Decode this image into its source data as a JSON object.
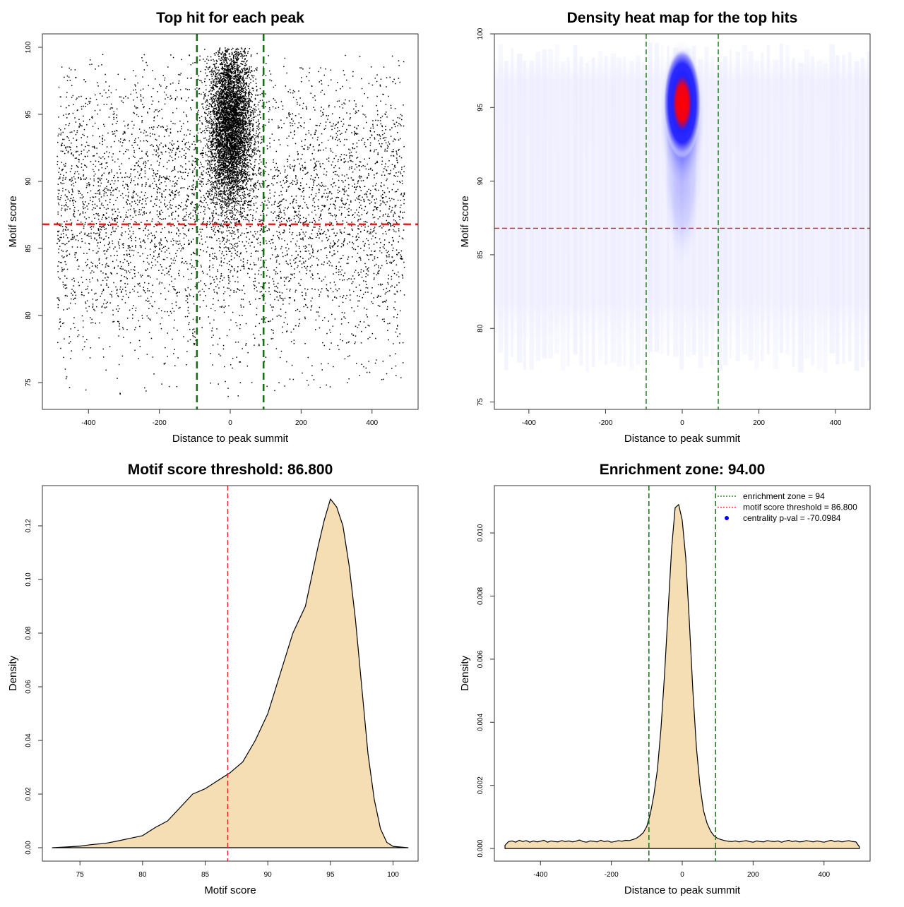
{
  "chart_data": [
    {
      "type": "scatter",
      "title": "Top hit for each peak",
      "xlabel": "Distance to peak summit",
      "ylabel": "Motif score",
      "xlim": [
        -530,
        530
      ],
      "ylim": [
        73,
        101
      ],
      "xticks": [
        -400,
        -200,
        0,
        200,
        400
      ],
      "yticks": [
        75,
        80,
        85,
        90,
        95,
        100
      ],
      "threshold": 86.8,
      "enrichment_zone": [
        -94,
        94
      ],
      "threshold_color": "#dd2222",
      "zone_color": "#157015",
      "point_color": "#000000"
    },
    {
      "type": "heatmap",
      "title": "Density heat map for the top hits",
      "xlabel": "Distance to peak summit",
      "ylabel": "Motif score",
      "xlim": [
        -490,
        490
      ],
      "ylim": [
        74.5,
        100
      ],
      "xticks": [
        -400,
        -200,
        0,
        200,
        400
      ],
      "yticks": [
        75,
        80,
        85,
        90,
        95,
        100
      ],
      "threshold": 86.8,
      "enrichment_zone": [
        -94,
        94
      ],
      "peak_center": {
        "x": 0,
        "y": 95.3
      },
      "colors": [
        "#ffffff",
        "#0000ff",
        "#ff0000"
      ]
    },
    {
      "type": "area",
      "title": "Motif score threshold: 86.800",
      "xlabel": "Motif score",
      "ylabel": "Density",
      "xlim": [
        72,
        102
      ],
      "ylim": [
        -0.005,
        0.135
      ],
      "xticks": [
        75,
        80,
        85,
        90,
        95,
        100
      ],
      "yticks": [
        0.0,
        0.02,
        0.04,
        0.06,
        0.08,
        0.1,
        0.12
      ],
      "ytick_labels": [
        "0.00",
        "0.02",
        "0.04",
        "0.06",
        "0.08",
        "0.10",
        "0.12"
      ],
      "threshold": 86.8,
      "fill_color": "#f5deb3",
      "x": [
        72.8,
        74,
        75,
        76,
        77,
        78,
        79,
        80,
        81,
        82,
        83,
        84,
        85,
        86,
        87,
        88,
        89,
        90,
        91,
        92,
        93,
        94,
        94.5,
        95,
        95.5,
        96,
        96.5,
        97,
        97.5,
        98,
        98.5,
        99,
        99.5,
        100,
        101.2
      ],
      "y": [
        0,
        0.0003,
        0.0006,
        0.0012,
        0.0016,
        0.0025,
        0.0035,
        0.0045,
        0.0075,
        0.01,
        0.015,
        0.02,
        0.022,
        0.025,
        0.028,
        0.032,
        0.04,
        0.05,
        0.065,
        0.08,
        0.09,
        0.112,
        0.122,
        0.13,
        0.127,
        0.12,
        0.105,
        0.085,
        0.06,
        0.035,
        0.018,
        0.007,
        0.002,
        0.0005,
        0
      ]
    },
    {
      "type": "area",
      "title": "Enrichment zone: 94.00",
      "xlabel": "Distance to peak summit",
      "ylabel": "Density",
      "xlim": [
        -530,
        530
      ],
      "ylim": [
        -0.0004,
        0.0115
      ],
      "xticks": [
        -400,
        -200,
        0,
        200,
        400
      ],
      "yticks": [
        0,
        0.002,
        0.004,
        0.006,
        0.008,
        0.01
      ],
      "ytick_labels": [
        "0.000",
        "0.002",
        "0.004",
        "0.006",
        "0.008",
        "0.010"
      ],
      "enrichment_zone": [
        -94,
        94
      ],
      "fill_color": "#f5deb3",
      "x": [
        -500,
        -490,
        -480,
        -470,
        -460,
        -450,
        -440,
        -430,
        -420,
        -410,
        -400,
        -390,
        -380,
        -370,
        -360,
        -350,
        -340,
        -330,
        -320,
        -310,
        -300,
        -290,
        -280,
        -270,
        -260,
        -250,
        -240,
        -230,
        -220,
        -210,
        -200,
        -190,
        -180,
        -170,
        -160,
        -150,
        -140,
        -130,
        -120,
        -110,
        -100,
        -90,
        -80,
        -70,
        -60,
        -50,
        -40,
        -30,
        -20,
        -10,
        0,
        10,
        20,
        30,
        40,
        50,
        60,
        70,
        80,
        90,
        100,
        110,
        120,
        130,
        140,
        150,
        160,
        170,
        180,
        190,
        200,
        210,
        220,
        230,
        240,
        250,
        260,
        270,
        280,
        290,
        300,
        310,
        320,
        330,
        340,
        350,
        360,
        370,
        380,
        390,
        400,
        410,
        420,
        430,
        440,
        450,
        460,
        470,
        480,
        490,
        500
      ],
      "y": [
        0.0001,
        0.00022,
        0.00024,
        0.0002,
        0.00026,
        0.00022,
        0.00025,
        0.0002,
        0.00024,
        0.00021,
        0.00023,
        0.00026,
        0.0002,
        0.00024,
        0.00022,
        0.00021,
        0.00025,
        0.00022,
        0.00024,
        0.00021,
        0.00023,
        0.00027,
        0.00022,
        0.0002,
        0.00024,
        0.00023,
        0.00021,
        0.00026,
        0.00022,
        0.00024,
        0.0002,
        0.00022,
        0.00025,
        0.00023,
        0.00026,
        0.00025,
        0.00028,
        0.00032,
        0.0004,
        0.0005,
        0.0007,
        0.0011,
        0.0017,
        0.0025,
        0.0038,
        0.0055,
        0.0075,
        0.0095,
        0.0108,
        0.0109,
        0.0104,
        0.0092,
        0.0072,
        0.005,
        0.0032,
        0.002,
        0.0012,
        0.0008,
        0.00055,
        0.0004,
        0.00032,
        0.00028,
        0.00025,
        0.00023,
        0.00022,
        0.00024,
        0.00021,
        0.00023,
        0.00025,
        0.00022,
        0.0002,
        0.00024,
        0.00022,
        0.00021,
        0.00025,
        0.00023,
        0.00022,
        0.00024,
        0.0002,
        0.00023,
        0.00026,
        0.00022,
        0.00024,
        0.00021,
        0.00022,
        0.00025,
        0.00023,
        0.00021,
        0.00024,
        0.00022,
        0.0002,
        0.00023,
        0.00026,
        0.00022,
        0.00024,
        0.00021,
        0.00023,
        0.00025,
        0.00022,
        0.00021,
        5e-05
      ],
      "legend": {
        "position": "top-right",
        "entries": [
          {
            "label": "enrichment zone = 94",
            "color": "#157015",
            "style": "dotted-line"
          },
          {
            "label": "motif score threshold = 86.800",
            "color": "#dd2222",
            "style": "dotted-line"
          },
          {
            "label": "centrality p-val = -70.0984",
            "color": "#0000ff",
            "style": "point"
          }
        ]
      }
    }
  ]
}
